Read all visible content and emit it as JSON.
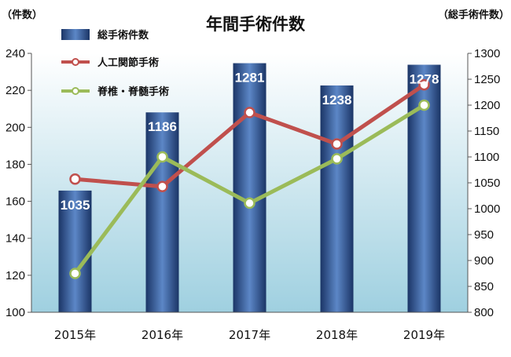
{
  "chart_data": {
    "type": "bar",
    "title": "年間手術件数",
    "left_unit": "（件数）",
    "right_unit": "（総手術件数）",
    "categories": [
      "2015年",
      "2016年",
      "2017年",
      "2018年",
      "2019年"
    ],
    "left_axis": {
      "ylim": [
        100,
        240
      ],
      "ticks": [
        "100",
        "120",
        "140",
        "160",
        "180",
        "200",
        "220",
        "240"
      ]
    },
    "right_axis": {
      "ylim": [
        800,
        1300
      ],
      "ticks": [
        "800",
        "850",
        "900",
        "950",
        "1000",
        "1050",
        "1100",
        "1150",
        "1200",
        "1250",
        "1300"
      ]
    },
    "legend_position": "top-left",
    "grid": false,
    "series": [
      {
        "name": "総手術件数",
        "kind": "bar",
        "axis": "right",
        "values": [
          1035,
          1186,
          1281,
          1238,
          1278
        ],
        "labels": [
          "1035",
          "1186",
          "1281",
          "1238",
          "1278"
        ],
        "color": "#2a4f8c"
      },
      {
        "name": "人工関節手術",
        "kind": "line",
        "axis": "left",
        "values": [
          172,
          168,
          208,
          191,
          223
        ],
        "color": "#c0504d"
      },
      {
        "name": "脊椎・脊髄手術",
        "kind": "line",
        "axis": "left",
        "values": [
          121,
          184,
          159,
          183,
          212
        ],
        "color": "#9bbb59"
      }
    ]
  }
}
